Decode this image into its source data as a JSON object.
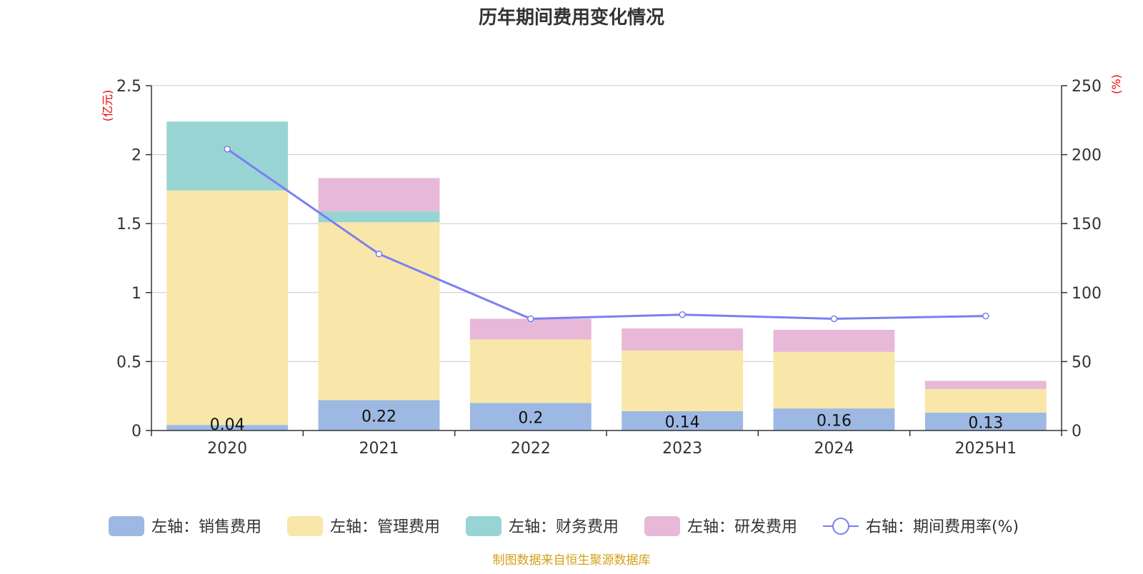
{
  "chart_data": {
    "type": "bar",
    "stacked": true,
    "title": "历年期间费用变化情况",
    "categories": [
      "2020",
      "2021",
      "2022",
      "2023",
      "2024",
      "2025H1"
    ],
    "y_left": {
      "label": "(亿元)",
      "ylim": [
        0,
        2.5
      ],
      "ticks": [
        "0",
        "0.5",
        "1",
        "1.5",
        "2",
        "2.5"
      ],
      "tick_values": [
        0,
        0.5,
        1,
        1.5,
        2,
        2.5
      ]
    },
    "y_right": {
      "label": "(%)",
      "ylim": [
        0,
        250
      ],
      "ticks": [
        "0",
        "50",
        "100",
        "150",
        "200",
        "250"
      ],
      "tick_values": [
        0,
        50,
        100,
        150,
        200,
        250
      ]
    },
    "grid": true,
    "series": [
      {
        "name": "左轴：销售费用",
        "axis": "left",
        "color": "#9db8e3",
        "values": [
          0.04,
          0.22,
          0.2,
          0.14,
          0.16,
          0.13
        ],
        "labels": [
          "0.04",
          "0.22",
          "0.2",
          "0.14",
          "0.16",
          "0.13"
        ]
      },
      {
        "name": "左轴：管理费用",
        "axis": "left",
        "color": "#f8e7a8",
        "values": [
          1.7,
          1.29,
          0.46,
          0.44,
          0.41,
          0.17
        ]
      },
      {
        "name": "左轴：财务费用",
        "axis": "left",
        "color": "#98d4d4",
        "values": [
          0.5,
          0.08,
          0.0,
          0.0,
          0.0,
          0.0
        ]
      },
      {
        "name": "左轴：研发费用",
        "axis": "left",
        "color": "#e8b8d8",
        "values": [
          0.0,
          0.24,
          0.15,
          0.16,
          0.16,
          0.06
        ]
      }
    ],
    "line_series": {
      "name": "右轴：期间费用率(%)",
      "axis": "right",
      "color": "#7b7ff0",
      "values": [
        204,
        128,
        81,
        84,
        81,
        83
      ]
    },
    "legend_position": "bottom",
    "source_note": "制图数据来自恒生聚源数据库"
  }
}
